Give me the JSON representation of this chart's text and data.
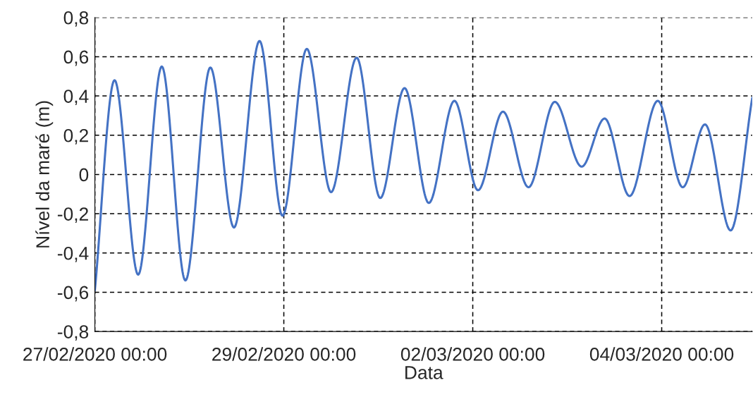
{
  "chart_data": {
    "type": "line",
    "xlabel": "Data",
    "ylabel": "Nível da maré (m)",
    "x": [
      "2020-02-27T00:00",
      "2020-02-27T05:00",
      "2020-02-27T11:00",
      "2020-02-27T17:00",
      "2020-02-27T23:00",
      "2020-02-28T05:20",
      "2020-02-28T11:20",
      "2020-02-28T17:50",
      "2020-02-28T23:40",
      "2020-02-29T05:50",
      "2020-02-29T12:00",
      "2020-02-29T18:30",
      "2020-03-01T00:30",
      "2020-03-01T06:40",
      "2020-03-01T12:50",
      "2020-03-01T19:20",
      "2020-03-02T01:20",
      "2020-03-02T07:40",
      "2020-03-02T14:10",
      "2020-03-02T20:50",
      "2020-03-03T03:40",
      "2020-03-03T09:30",
      "2020-03-03T15:50",
      "2020-03-03T23:00",
      "2020-03-04T05:20",
      "2020-03-04T11:00",
      "2020-03-04T17:30",
      "2020-03-04T23:00"
    ],
    "series": [
      {
        "color": "#4472c4",
        "values": [
          -0.59,
          0.48,
          -0.51,
          0.55,
          -0.54,
          0.545,
          -0.27,
          0.68,
          -0.21,
          0.64,
          -0.09,
          0.595,
          -0.12,
          0.44,
          -0.145,
          0.375,
          -0.08,
          0.32,
          -0.065,
          0.37,
          0.04,
          0.285,
          -0.11,
          0.375,
          -0.065,
          0.255,
          -0.285,
          0.39
        ]
      }
    ],
    "xlim": [
      "2020-02-27T00:00",
      "2020-03-04T23:00"
    ],
    "xticks": [
      {
        "value": "2020-02-27T00:00",
        "label": "27/02/2020 00:00"
      },
      {
        "value": "2020-02-29T00:00",
        "label": "29/02/2020 00:00"
      },
      {
        "value": "2020-03-02T00:00",
        "label": "02/03/2020 00:00"
      },
      {
        "value": "2020-03-04T00:00",
        "label": "04/03/2020 00:00"
      }
    ],
    "ylim": [
      -0.8,
      0.8
    ],
    "yticks": [
      {
        "value": -0.8,
        "label": "-0,8"
      },
      {
        "value": -0.6,
        "label": "-0,6"
      },
      {
        "value": -0.4,
        "label": "-0,4"
      },
      {
        "value": -0.2,
        "label": "-0,2"
      },
      {
        "value": 0,
        "label": "0"
      },
      {
        "value": 0.2,
        "label": "0,2"
      },
      {
        "value": 0.4,
        "label": "0,4"
      },
      {
        "value": 0.6,
        "label": "0,6"
      },
      {
        "value": 0.8,
        "label": "0,8"
      }
    ],
    "grid": true,
    "marker": "none",
    "line_style": "solid"
  }
}
